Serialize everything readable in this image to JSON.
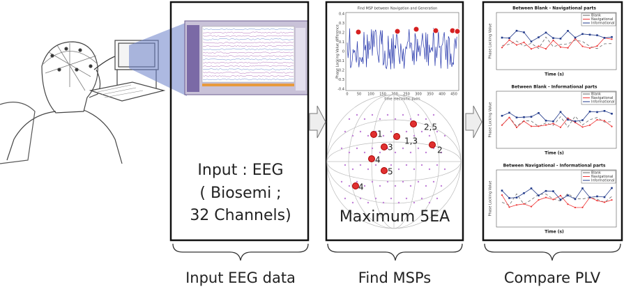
{
  "input_panel": {
    "lines": [
      "Input : EEG",
      "( Biosemi ;",
      "32 Channels)"
    ],
    "caption": "Input EEG data"
  },
  "msp_panel": {
    "chart_title": "Find MSP between Navigation and Generation",
    "y_label": "Phase Locking Value difference",
    "x_label": "time electronic pairs",
    "yticks": [
      "0.4",
      "0.3",
      "0.2",
      "0.1",
      "0",
      "-0.1",
      "-0.2",
      "-0.3",
      "-0.4"
    ],
    "xticks": [
      "0",
      "50",
      "100",
      "150",
      "200",
      "250",
      "300",
      "350",
      "400",
      "450"
    ],
    "points": [
      "1",
      "2,5",
      "1,3",
      "3",
      "2",
      "4",
      "5",
      "4"
    ],
    "text": "Maximum 5EA",
    "caption": "Find MSPs"
  },
  "plv_panel": {
    "charts": [
      "Between Blank - Navigational parts",
      "Between Blank - Informational parts",
      "Between Navigational - Informational parts"
    ],
    "legend": [
      "Blank",
      "Navigational",
      "Informational"
    ],
    "x_label": "Time (s)",
    "y_label": "Phase Locking Value",
    "caption": "Compare PLV"
  }
}
